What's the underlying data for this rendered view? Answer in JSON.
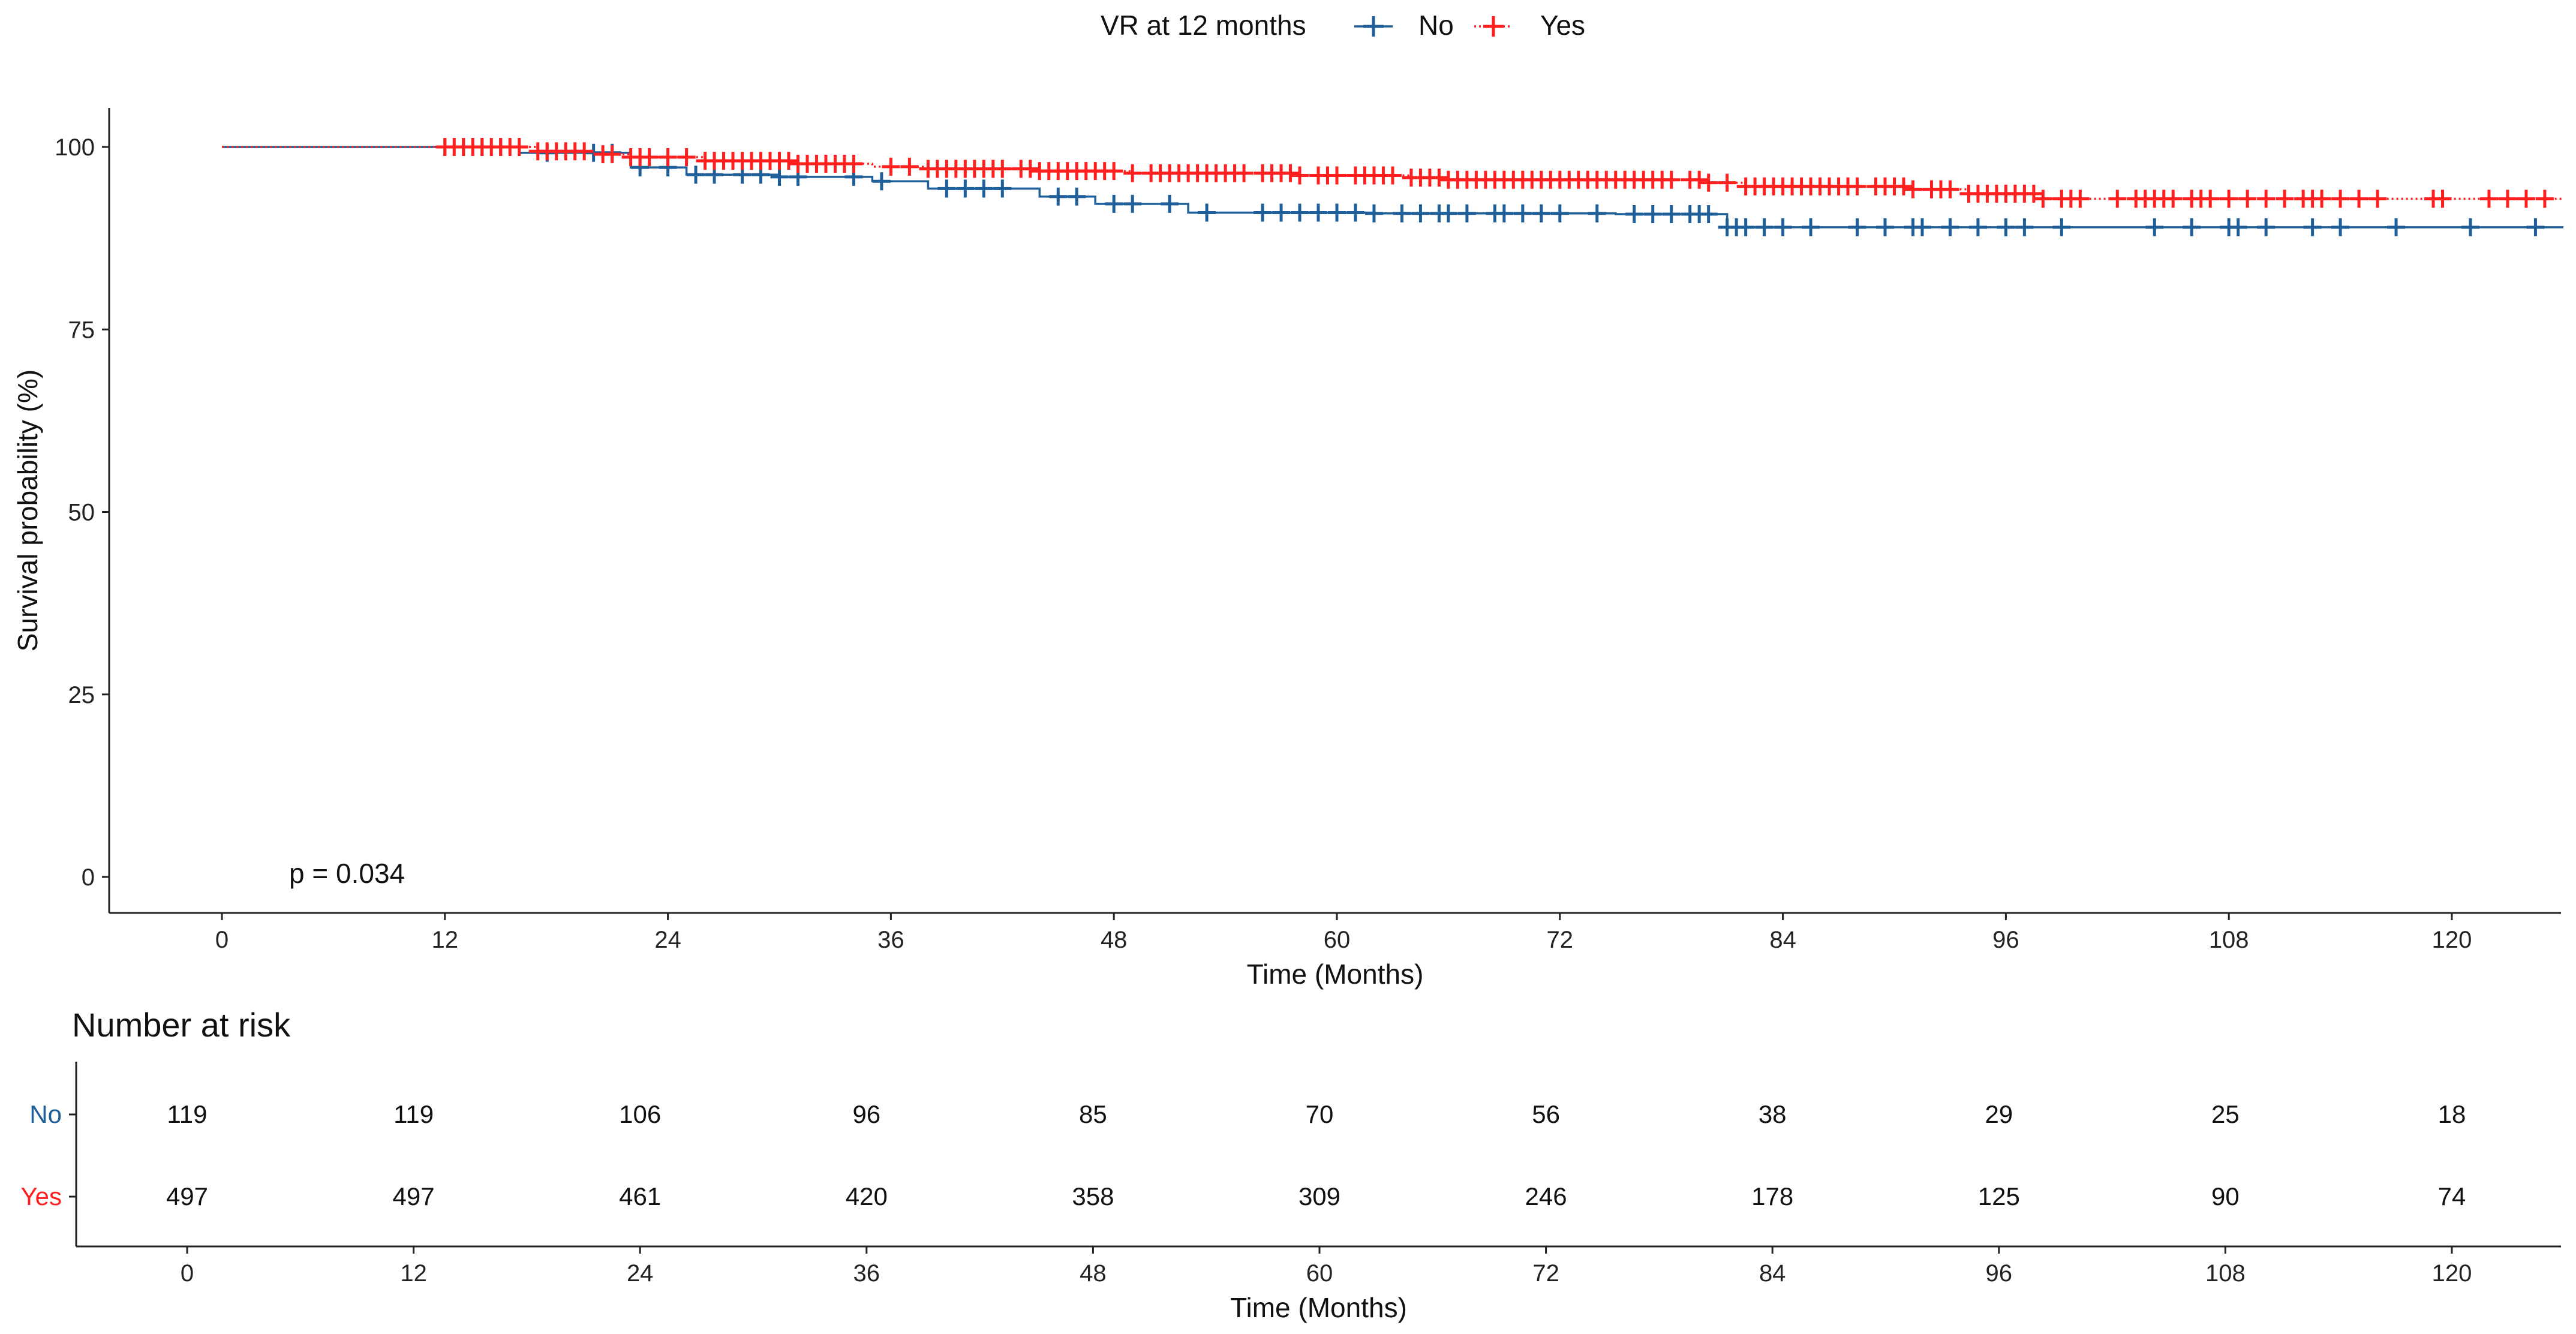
{
  "chart_data": {
    "type": "line",
    "subtype": "kaplan-meier",
    "legend": {
      "title": "VR at 12 months",
      "placement": "top",
      "entries": [
        "No",
        "Yes"
      ]
    },
    "xlabel": "Time (Months)",
    "ylabel": "Survival probability (%)",
    "xlim": [
      -5,
      126
    ],
    "ylim": [
      -5,
      105
    ],
    "xticks": [
      0,
      12,
      24,
      36,
      48,
      60,
      72,
      84,
      96,
      108,
      120
    ],
    "yticks": [
      0,
      25,
      50,
      75,
      100
    ],
    "grid": false,
    "annotation": "p = 0.034",
    "colors": {
      "No": "#1f5f99",
      "Yes": "#ff1f1f"
    },
    "series": [
      {
        "name": "No",
        "line_style": "solid",
        "steps": [
          [
            0,
            100
          ],
          [
            16,
            99.2
          ],
          [
            22,
            97.2
          ],
          [
            25,
            96.2
          ],
          [
            30,
            95.9
          ],
          [
            35,
            95.3
          ],
          [
            38,
            94.3
          ],
          [
            44,
            93.2
          ],
          [
            47,
            92.2
          ],
          [
            52,
            91.0
          ],
          [
            62,
            90.9
          ],
          [
            75,
            90.8
          ],
          [
            81,
            89.0
          ],
          [
            126,
            89.0
          ]
        ],
        "censor_x": [
          12,
          13,
          14,
          15,
          17.5,
          20,
          21,
          22.5,
          24,
          25.5,
          26.5,
          28,
          29,
          30,
          31,
          34,
          35.5,
          39,
          40,
          41,
          42,
          45,
          46,
          48,
          49,
          51,
          53,
          56,
          57,
          58,
          59,
          60,
          61,
          62,
          63.5,
          64.5,
          65.5,
          66,
          67,
          68.5,
          69,
          70,
          71,
          72,
          74,
          76,
          77,
          78,
          79,
          79.5,
          80,
          81,
          81.5,
          82,
          83,
          84,
          85.5,
          88,
          89.5,
          91,
          91.5,
          93,
          94.5,
          96,
          97,
          99,
          104,
          106,
          108,
          108.5,
          110,
          112.5,
          114,
          117,
          121,
          124.5
        ]
      },
      {
        "name": "Yes",
        "line_style": "dotted",
        "steps": [
          [
            0,
            100
          ],
          [
            17,
            99.4
          ],
          [
            20,
            99.0
          ],
          [
            22,
            98.6
          ],
          [
            26,
            98.1
          ],
          [
            31,
            97.7
          ],
          [
            35,
            97.3
          ],
          [
            38,
            97.0
          ],
          [
            44,
            96.7
          ],
          [
            49,
            96.4
          ],
          [
            58,
            96.1
          ],
          [
            64,
            95.8
          ],
          [
            66,
            95.5
          ],
          [
            80,
            95.1
          ],
          [
            82,
            94.6
          ],
          [
            91,
            94.2
          ],
          [
            94,
            93.6
          ],
          [
            98,
            92.9
          ],
          [
            126,
            92.9
          ]
        ],
        "censor_x": [
          12,
          12.5,
          13,
          13.5,
          14,
          14.5,
          15,
          15.5,
          16,
          17,
          17.5,
          18,
          18.5,
          19,
          19.5,
          20.5,
          21,
          22,
          22.5,
          23,
          24,
          25,
          26,
          26.5,
          27,
          27.5,
          28,
          28.5,
          29,
          29.5,
          30,
          30.5,
          31,
          31.5,
          32,
          32.5,
          33,
          33.5,
          34,
          36,
          37,
          38,
          38.5,
          39,
          39.5,
          40,
          40.5,
          41,
          41.5,
          42,
          43,
          43.5,
          44,
          44.5,
          45,
          45.5,
          46,
          46.5,
          47,
          47.5,
          48,
          49,
          50,
          50.5,
          51,
          51.5,
          52,
          52.5,
          53,
          53.5,
          54,
          54.5,
          55,
          56,
          56.5,
          57,
          57.5,
          58,
          59,
          59.5,
          60,
          61,
          61.5,
          62,
          62.5,
          63,
          64,
          64.5,
          65,
          65.5,
          66,
          66.5,
          67,
          67.5,
          68,
          68.5,
          69,
          69.5,
          70,
          70.5,
          71,
          71.5,
          72,
          72.5,
          73,
          73.5,
          74,
          74.5,
          75,
          75.5,
          76,
          76.5,
          77,
          77.5,
          78,
          79,
          79.5,
          80,
          81,
          82,
          82.5,
          83,
          83.5,
          84,
          84.5,
          85,
          85.5,
          86,
          86.5,
          87,
          87.5,
          88,
          89,
          89.5,
          90,
          90.5,
          91,
          92,
          92.5,
          93,
          94,
          94.5,
          95,
          95.5,
          96,
          96.5,
          97,
          97.5,
          98,
          99,
          99.5,
          100,
          102,
          103,
          103.5,
          104,
          104.5,
          105,
          106,
          106.5,
          107,
          108,
          109,
          110,
          111,
          112,
          112.5,
          113,
          114,
          115,
          116,
          119,
          119.5,
          122,
          123,
          124,
          125
        ]
      }
    ],
    "risk_table": {
      "title": "Number at risk",
      "times": [
        0,
        12,
        24,
        36,
        48,
        60,
        72,
        84,
        96,
        108,
        120
      ],
      "xlabel": "Time (Months)",
      "rows": [
        {
          "name": "No",
          "counts": [
            119,
            119,
            106,
            96,
            85,
            70,
            56,
            38,
            29,
            25,
            18
          ]
        },
        {
          "name": "Yes",
          "counts": [
            497,
            497,
            461,
            420,
            358,
            309,
            246,
            178,
            125,
            90,
            74
          ]
        }
      ]
    }
  }
}
